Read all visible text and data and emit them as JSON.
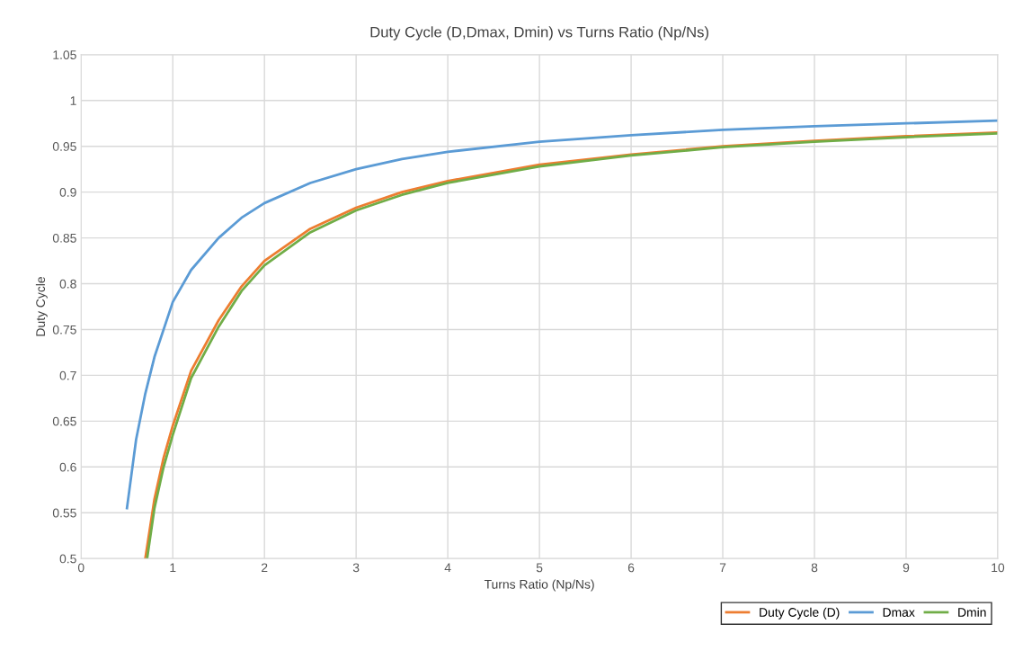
{
  "chart_data": {
    "type": "line",
    "title": "Duty Cycle (D,Dmax, Dmin) vs Turns Ratio (Np/Ns)",
    "xlabel": "Turns Ratio (Np/Ns)",
    "ylabel": "Duty Cycle",
    "xlim": [
      0,
      10
    ],
    "xticks": [
      0,
      1,
      2,
      3,
      4,
      5,
      6,
      7,
      8,
      9,
      10
    ],
    "ylim": [
      0.5,
      1.05
    ],
    "yticks": [
      0.5,
      0.55,
      0.6,
      0.65,
      0.7,
      0.75,
      0.8,
      0.85,
      0.9,
      0.95,
      1,
      1.05
    ],
    "grid": true,
    "legend": "bottom right",
    "marker": "none",
    "line_style": "solid",
    "series": [
      {
        "name": "Duty Cycle (D)",
        "color": "#ed7d31",
        "x": [
          0.7,
          0.8,
          0.9,
          1,
          1.2,
          1.5,
          1.75,
          2,
          2.5,
          3,
          3.5,
          4,
          5,
          6,
          7,
          8,
          9,
          10
        ],
        "values": [
          0.5,
          0.565,
          0.61,
          0.645,
          0.705,
          0.76,
          0.797,
          0.825,
          0.86,
          0.883,
          0.9,
          0.912,
          0.93,
          0.941,
          0.95,
          0.956,
          0.961,
          0.965
        ]
      },
      {
        "name": "Dmax",
        "color": "#5b9bd5",
        "x": [
          0.5,
          0.6,
          0.7,
          0.8,
          1,
          1.2,
          1.5,
          1.75,
          2,
          2.5,
          3,
          3.5,
          4,
          5,
          6,
          7,
          8,
          9,
          10
        ],
        "values": [
          0.555,
          0.63,
          0.68,
          0.72,
          0.78,
          0.815,
          0.85,
          0.872,
          0.888,
          0.91,
          0.925,
          0.936,
          0.944,
          0.955,
          0.962,
          0.968,
          0.972,
          0.975,
          0.978
        ]
      },
      {
        "name": "Dmin",
        "color": "#70ad47",
        "x": [
          0.72,
          0.8,
          0.9,
          1,
          1.2,
          1.5,
          1.75,
          2,
          2.5,
          3,
          3.5,
          4,
          5,
          6,
          7,
          8,
          9,
          10
        ],
        "values": [
          0.5,
          0.555,
          0.6,
          0.635,
          0.697,
          0.753,
          0.792,
          0.82,
          0.856,
          0.88,
          0.897,
          0.91,
          0.928,
          0.94,
          0.949,
          0.955,
          0.96,
          0.964
        ]
      }
    ]
  }
}
